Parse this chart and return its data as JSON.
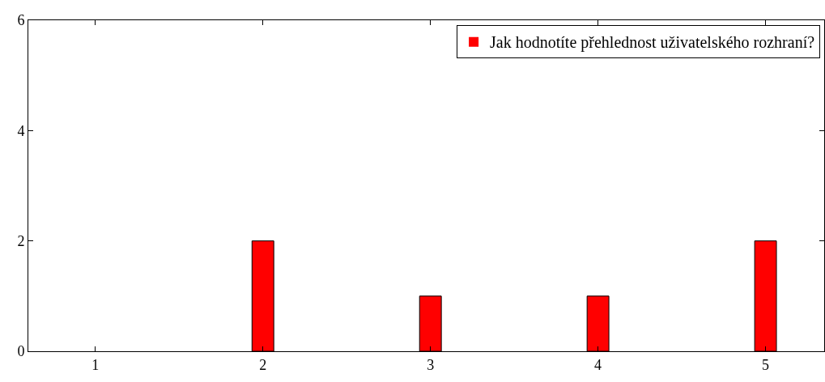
{
  "chart_data": {
    "type": "bar",
    "x": [
      1,
      2,
      3,
      4,
      5
    ],
    "series": [
      {
        "name": "Jak hodnotíte přehlednost uživatelského rozhraní?",
        "color": "#ff0000",
        "values": [
          0,
          2,
          1,
          1,
          2
        ]
      }
    ],
    "xlim": [
      0.6,
      5.35
    ],
    "xticks": [
      1,
      2,
      3,
      4,
      5
    ],
    "ylim": [
      0,
      6
    ],
    "yticks": [
      0,
      2,
      4,
      6
    ],
    "legend": "top right"
  }
}
